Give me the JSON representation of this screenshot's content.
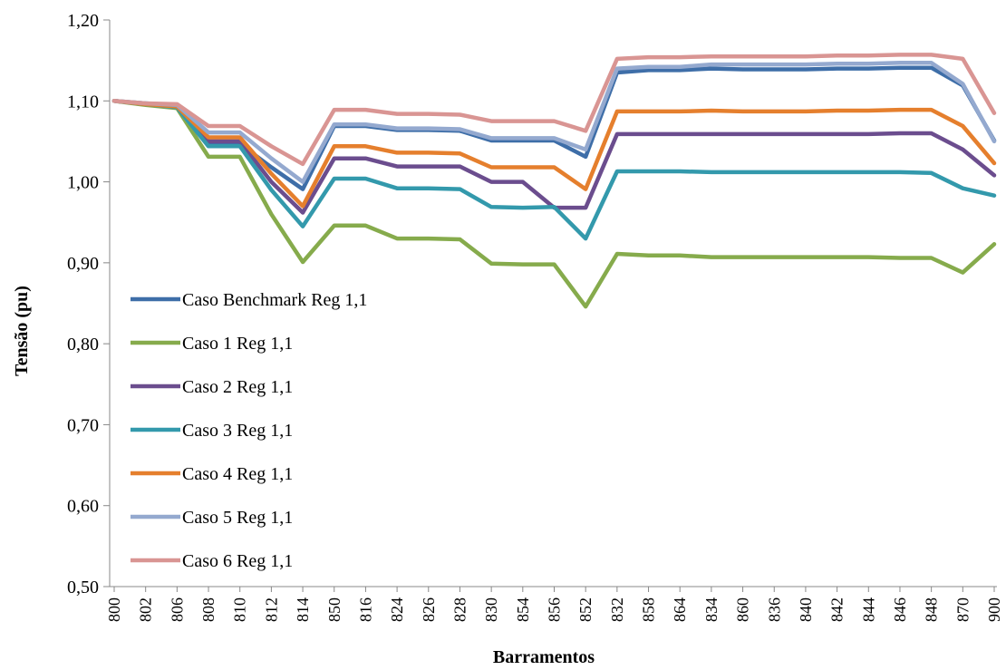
{
  "chart_data": {
    "type": "line",
    "xlabel": "Barramentos",
    "ylabel": "Tensão (pu)",
    "ylim": [
      0.5,
      1.2
    ],
    "yticks": [
      "0,50",
      "0,60",
      "0,70",
      "0,80",
      "0,90",
      "1,00",
      "1,10",
      "1,20"
    ],
    "grid": false,
    "legend_position": "left, inside plot",
    "categories": [
      "800",
      "802",
      "806",
      "808",
      "810",
      "812",
      "814",
      "850",
      "816",
      "824",
      "826",
      "828",
      "830",
      "854",
      "856",
      "852",
      "832",
      "858",
      "864",
      "834",
      "860",
      "836",
      "840",
      "842",
      "844",
      "846",
      "848",
      "870",
      "900"
    ],
    "series": [
      {
        "name": "Caso Benchmark Reg 1,1",
        "color": "#3e6ea8",
        "values": [
          1.1,
          1.097,
          1.094,
          1.047,
          1.047,
          1.018,
          0.991,
          1.069,
          1.069,
          1.064,
          1.064,
          1.063,
          1.051,
          1.051,
          1.051,
          1.031,
          1.135,
          1.138,
          1.138,
          1.14,
          1.139,
          1.139,
          1.139,
          1.14,
          1.14,
          1.141,
          1.141,
          1.119,
          1.051
        ]
      },
      {
        "name": "Caso 1 Reg 1,1",
        "color": "#86ab4c",
        "values": [
          1.1,
          1.095,
          1.091,
          1.031,
          1.031,
          0.96,
          0.901,
          0.946,
          0.946,
          0.93,
          0.93,
          0.929,
          0.899,
          0.898,
          0.898,
          0.846,
          0.911,
          0.909,
          0.909,
          0.907,
          0.907,
          0.907,
          0.907,
          0.907,
          0.907,
          0.906,
          0.906,
          0.888,
          0.923
        ]
      },
      {
        "name": "Caso 2 Reg 1,1",
        "color": "#6b4d8e",
        "values": [
          1.1,
          1.096,
          1.093,
          1.05,
          1.05,
          1.0,
          0.962,
          1.029,
          1.029,
          1.019,
          1.019,
          1.019,
          1.0,
          1.0,
          0.968,
          0.968,
          1.059,
          1.059,
          1.059,
          1.059,
          1.059,
          1.059,
          1.059,
          1.059,
          1.059,
          1.06,
          1.06,
          1.04,
          1.008
        ]
      },
      {
        "name": "Caso 3 Reg 1,1",
        "color": "#3399ac",
        "values": [
          1.1,
          1.096,
          1.092,
          1.044,
          1.044,
          0.99,
          0.945,
          1.004,
          1.004,
          0.992,
          0.992,
          0.991,
          0.969,
          0.968,
          0.969,
          0.93,
          1.013,
          1.013,
          1.013,
          1.012,
          1.012,
          1.012,
          1.012,
          1.012,
          1.012,
          1.012,
          1.011,
          0.992,
          0.983
        ]
      },
      {
        "name": "Caso 4 Reg 1,1",
        "color": "#e57f2d",
        "values": [
          1.1,
          1.096,
          1.093,
          1.055,
          1.055,
          1.01,
          0.97,
          1.044,
          1.044,
          1.036,
          1.036,
          1.035,
          1.018,
          1.018,
          1.018,
          0.991,
          1.087,
          1.087,
          1.087,
          1.088,
          1.087,
          1.087,
          1.087,
          1.088,
          1.088,
          1.089,
          1.089,
          1.069,
          1.023
        ]
      },
      {
        "name": "Caso 5 Reg 1,1",
        "color": "#94a9cf",
        "values": [
          1.1,
          1.097,
          1.095,
          1.061,
          1.061,
          1.029,
          1.0,
          1.071,
          1.071,
          1.066,
          1.066,
          1.065,
          1.054,
          1.054,
          1.054,
          1.04,
          1.14,
          1.142,
          1.142,
          1.145,
          1.145,
          1.145,
          1.145,
          1.146,
          1.146,
          1.147,
          1.147,
          1.121,
          1.05
        ]
      },
      {
        "name": "Caso 6 Reg 1,1",
        "color": "#d99593",
        "values": [
          1.1,
          1.097,
          1.096,
          1.069,
          1.069,
          1.044,
          1.022,
          1.089,
          1.089,
          1.084,
          1.084,
          1.083,
          1.075,
          1.075,
          1.075,
          1.063,
          1.152,
          1.154,
          1.154,
          1.155,
          1.155,
          1.155,
          1.155,
          1.156,
          1.156,
          1.157,
          1.157,
          1.152,
          1.085
        ]
      }
    ]
  }
}
